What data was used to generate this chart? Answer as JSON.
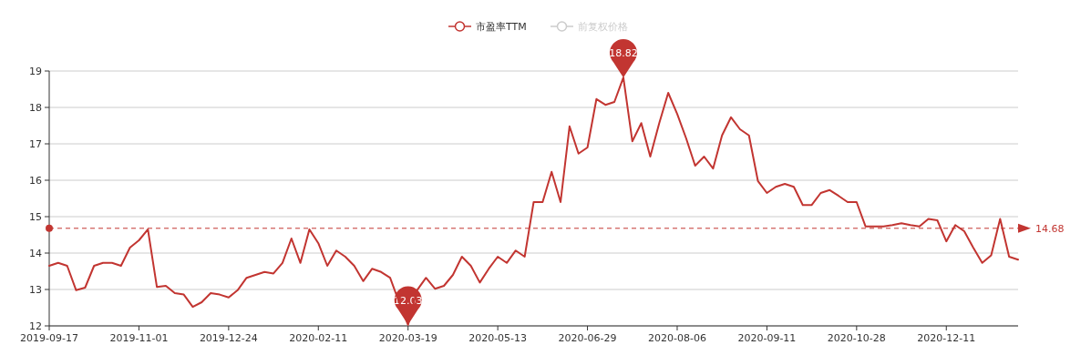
{
  "chart_data": {
    "type": "line",
    "categories": [
      "2019-09-17",
      null,
      null,
      null,
      null,
      null,
      null,
      null,
      null,
      null,
      "2019-11-01",
      null,
      null,
      null,
      null,
      null,
      null,
      null,
      null,
      null,
      "2019-12-24",
      null,
      null,
      null,
      null,
      null,
      null,
      null,
      null,
      null,
      "2020-02-11",
      null,
      null,
      null,
      null,
      null,
      null,
      null,
      null,
      null,
      "2020-03-19",
      null,
      null,
      null,
      null,
      null,
      null,
      null,
      null,
      null,
      "2020-05-13",
      null,
      null,
      null,
      null,
      null,
      null,
      null,
      null,
      null,
      "2020-06-29",
      null,
      null,
      null,
      null,
      null,
      null,
      null,
      null,
      null,
      "2020-08-06",
      null,
      null,
      null,
      null,
      null,
      null,
      null,
      null,
      null,
      "2020-09-11",
      null,
      null,
      null,
      null,
      null,
      null,
      null,
      null,
      null,
      "2020-10-28",
      null,
      null,
      null,
      null,
      null,
      null,
      null,
      null,
      null,
      "2020-12-11",
      null,
      null,
      null,
      null,
      null,
      null,
      null,
      null
    ],
    "series": [
      {
        "name": "市盈率TTM",
        "color": "#c23531",
        "values": [
          13.65,
          13.73,
          13.65,
          12.98,
          13.05,
          13.65,
          13.73,
          13.73,
          13.65,
          14.15,
          14.35,
          14.65,
          13.07,
          13.1,
          12.9,
          12.86,
          12.52,
          12.65,
          12.9,
          12.86,
          12.78,
          12.98,
          13.32,
          13.4,
          13.48,
          13.44,
          13.73,
          14.4,
          13.73,
          14.65,
          14.27,
          13.65,
          14.07,
          13.9,
          13.65,
          13.23,
          13.57,
          13.48,
          13.32,
          12.65,
          12.03,
          12.98,
          13.32,
          13.02,
          13.1,
          13.4,
          13.9,
          13.65,
          13.19,
          13.57,
          13.9,
          13.73,
          14.07,
          13.9,
          15.4,
          15.4,
          16.23,
          15.4,
          17.48,
          16.73,
          16.9,
          18.23,
          18.07,
          18.15,
          18.82,
          17.07,
          17.57,
          16.65,
          17.57,
          18.4,
          17.82,
          17.15,
          16.4,
          16.65,
          16.32,
          17.23,
          17.73,
          17.4,
          17.23,
          15.98,
          15.65,
          15.82,
          15.9,
          15.82,
          15.32,
          15.32,
          15.65,
          15.73,
          15.57,
          15.4,
          15.4,
          14.73,
          14.73,
          14.73,
          14.77,
          14.82,
          14.77,
          14.73,
          14.94,
          14.9,
          14.32,
          14.77,
          14.6,
          14.15,
          13.73,
          13.94,
          14.94,
          13.9,
          13.82
        ]
      },
      {
        "name": "前复权价格",
        "color": "#cccccc",
        "values": [
          null,
          null,
          null,
          null,
          null,
          null,
          null,
          null,
          null,
          null,
          null,
          null,
          null,
          null,
          null,
          null,
          null,
          null,
          null,
          null,
          null,
          null,
          null,
          null,
          null,
          null,
          null,
          null,
          null,
          null,
          null,
          null,
          null,
          null,
          null,
          null,
          null,
          null,
          null,
          null,
          null,
          null,
          null,
          null,
          null,
          null,
          null,
          null,
          null,
          null,
          null,
          null,
          null,
          null,
          null,
          null,
          null,
          null,
          null,
          null,
          null,
          null,
          null,
          null,
          null,
          null,
          null,
          null,
          null,
          null,
          null,
          null,
          null,
          null,
          null,
          null,
          null,
          null,
          null,
          null,
          null,
          null,
          null,
          null,
          null,
          null,
          null,
          null,
          null,
          null,
          null,
          null,
          null,
          null,
          null,
          null,
          null,
          null,
          null,
          null,
          null,
          null,
          null,
          null,
          null,
          null,
          null,
          null,
          null
        ]
      }
    ],
    "ylim": [
      12,
      19
    ],
    "yticks": [
      12,
      13,
      14,
      15,
      16,
      17,
      18,
      19
    ],
    "grid": "y",
    "legend": "top",
    "marker": "none",
    "line_style": "solid",
    "annotations": [
      {
        "text": "18.82",
        "y": 18.82
      },
      {
        "text": "12.03",
        "y": 12.03
      }
    ],
    "ref_lines": [
      {
        "axis": "y",
        "value": 14.68,
        "label": "14.68",
        "color": "#c23531",
        "line_style": "dashed"
      }
    ]
  }
}
